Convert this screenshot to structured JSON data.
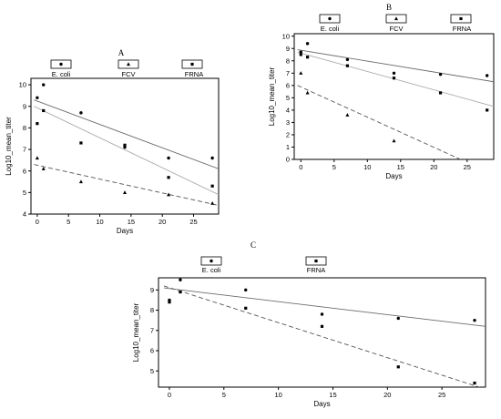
{
  "figure": {
    "panels": [
      {
        "letter": "A",
        "legend": [
          "E. coli",
          "FCV",
          "FRNA"
        ]
      },
      {
        "letter": "B",
        "legend": [
          "E. coli",
          "FCV",
          "FRNA"
        ]
      },
      {
        "letter": "C",
        "legend": [
          "E. coli",
          "FRNA"
        ]
      }
    ]
  },
  "chart_data": [
    {
      "type": "scatter",
      "title": "A",
      "xlabel": "Days",
      "ylabel": "Log10_mean_titer",
      "xlim": [
        -1,
        29
      ],
      "ylim": [
        4,
        10.3
      ],
      "xticks": [
        0,
        5,
        10,
        15,
        20,
        25
      ],
      "yticks": [
        4,
        5,
        6,
        7,
        8,
        9,
        10
      ],
      "legend_position": "top",
      "series": [
        {
          "name": "E. coli",
          "marker": "circle",
          "line_style": "solid",
          "line_color": "#6b6b6b",
          "points": [
            [
              0,
              9.4
            ],
            [
              1,
              10.0
            ],
            [
              7,
              8.7
            ],
            [
              14,
              7.1
            ],
            [
              21,
              6.6
            ],
            [
              28,
              6.6
            ]
          ],
          "fit": [
            [
              -0.5,
              9.3
            ],
            [
              29,
              6.1
            ]
          ]
        },
        {
          "name": "FCV",
          "marker": "triangle",
          "line_style": "dashed",
          "line_color": "#555555",
          "points": [
            [
              0,
              6.6
            ],
            [
              1,
              6.1
            ],
            [
              7,
              5.5
            ],
            [
              14,
              5.0
            ],
            [
              21,
              4.9
            ],
            [
              28,
              4.5
            ]
          ],
          "fit": [
            [
              -0.5,
              6.3
            ],
            [
              29,
              4.4
            ]
          ]
        },
        {
          "name": "FRNA",
          "marker": "square",
          "line_style": "solid",
          "line_color": "#a8a8a8",
          "points": [
            [
              0,
              8.2
            ],
            [
              1,
              8.8
            ],
            [
              7,
              7.3
            ],
            [
              14,
              7.2
            ],
            [
              21,
              5.7
            ],
            [
              28,
              5.3
            ]
          ],
          "fit": [
            [
              -0.5,
              9.0
            ],
            [
              29,
              4.9
            ]
          ]
        }
      ]
    },
    {
      "type": "scatter",
      "title": "B",
      "xlabel": "Days",
      "ylabel": "Log10_mean_titer",
      "xlim": [
        -1,
        29
      ],
      "ylim": [
        0,
        10.2
      ],
      "xticks": [
        0,
        5,
        10,
        15,
        20,
        25
      ],
      "yticks": [
        0,
        1,
        2,
        3,
        4,
        5,
        6,
        7,
        8,
        9,
        10
      ],
      "legend_position": "top",
      "series": [
        {
          "name": "E. coli",
          "marker": "circle",
          "line_style": "solid",
          "line_color": "#6b6b6b",
          "points": [
            [
              0,
              8.5
            ],
            [
              1,
              9.4
            ],
            [
              7,
              8.1
            ],
            [
              14,
              7.0
            ],
            [
              21,
              6.9
            ],
            [
              28,
              6.8
            ]
          ],
          "fit": [
            [
              -0.5,
              8.9
            ],
            [
              29,
              6.3
            ]
          ]
        },
        {
          "name": "FCV",
          "marker": "triangle",
          "line_style": "dashed",
          "line_color": "#555555",
          "points": [
            [
              0,
              7.0
            ],
            [
              1,
              5.4
            ],
            [
              7,
              3.6
            ],
            [
              14,
              1.5
            ]
          ],
          "fit": [
            [
              -0.5,
              6.0
            ],
            [
              24,
              0
            ]
          ]
        },
        {
          "name": "FRNA",
          "marker": "square",
          "line_style": "solid",
          "line_color": "#a8a8a8",
          "points": [
            [
              0,
              8.7
            ],
            [
              1,
              8.3
            ],
            [
              7,
              7.6
            ],
            [
              14,
              6.6
            ],
            [
              21,
              5.4
            ],
            [
              28,
              4.0
            ]
          ],
          "fit": [
            [
              -0.5,
              8.7
            ],
            [
              29,
              4.3
            ]
          ]
        }
      ]
    },
    {
      "type": "scatter",
      "title": "C",
      "xlabel": "Days",
      "ylabel": "Log10_mean_titer",
      "xlim": [
        -1,
        29
      ],
      "ylim": [
        4.2,
        9.6
      ],
      "xticks": [
        0,
        5,
        10,
        15,
        20,
        25
      ],
      "yticks": [
        5,
        6,
        7,
        8,
        9
      ],
      "legend_position": "top",
      "series": [
        {
          "name": "E. coli",
          "marker": "circle",
          "line_style": "solid",
          "line_color": "#6b6b6b",
          "points": [
            [
              0,
              8.5
            ],
            [
              1,
              9.5
            ],
            [
              7,
              9.0
            ],
            [
              14,
              7.8
            ],
            [
              21,
              7.6
            ],
            [
              28,
              7.5
            ]
          ],
          "fit": [
            [
              -0.5,
              9.1
            ],
            [
              29,
              7.2
            ]
          ]
        },
        {
          "name": "FRNA",
          "marker": "square",
          "line_style": "dashed",
          "line_color": "#555555",
          "points": [
            [
              0,
              8.4
            ],
            [
              1,
              8.9
            ],
            [
              7,
              8.1
            ],
            [
              14,
              7.2
            ],
            [
              21,
              5.2
            ],
            [
              28,
              4.4
            ]
          ],
          "fit": [
            [
              -0.5,
              9.2
            ],
            [
              29,
              4.1
            ]
          ]
        }
      ]
    }
  ]
}
